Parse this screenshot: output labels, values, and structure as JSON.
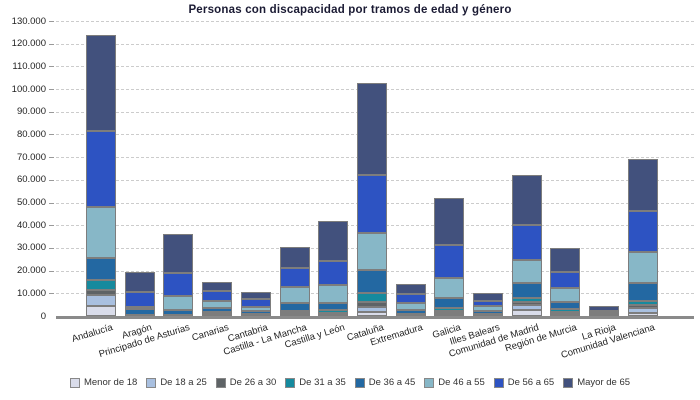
{
  "title": "Personas con discapacidad por tramos de edad y género",
  "colors": {
    "background": "#ffffff",
    "title_text": "#1a1a33",
    "gridline": "#cccccc",
    "axis_line": "#8a8a8a",
    "bar_border": "#7d7d7d",
    "tick_text": "#222222"
  },
  "y_axis": {
    "tick_labels": [
      "0",
      "10.000",
      "20.000",
      "30.000",
      "40.000",
      "50.000",
      "60.000",
      "70.000",
      "80.000",
      "90.000",
      "100.000",
      "110.000",
      "120.000",
      "130.000"
    ]
  },
  "chart_data": {
    "type": "bar",
    "stacked": true,
    "title": "Personas con discapacidad por tramos de edad y género",
    "xlabel": "",
    "ylabel": "",
    "ylim": [
      0,
      130000
    ],
    "ytick_interval": 10000,
    "grid": "horizontal-dashed",
    "legend_position": "bottom",
    "categories": [
      "Andalucía",
      "Aragón",
      "Principado de Asturias",
      "Canarias",
      "Cantabria",
      "Castilla - La Mancha",
      "Castilla y León",
      "Cataluña",
      "Extremadura",
      "Galicia",
      "Illes Balears",
      "Comunidad de Madrid",
      "Región de Murcia",
      "La Rioja",
      "Comunidad Valenciana"
    ],
    "series": [
      {
        "name": "Menor de 18",
        "color": "#d9dcea",
        "values": [
          4400,
          100,
          150,
          900,
          230,
          250,
          380,
          1630,
          180,
          880,
          230,
          2650,
          750,
          90,
          1450
        ]
      },
      {
        "name": "De 18 a 25",
        "color": "#a9c0e0",
        "values": [
          4850,
          150,
          200,
          400,
          280,
          320,
          500,
          2470,
          250,
          750,
          280,
          2200,
          700,
          120,
          2080
        ]
      },
      {
        "name": "De 26 a 30",
        "color": "#5e6366",
        "values": [
          2200,
          80,
          100,
          150,
          120,
          620,
          570,
          2200,
          150,
          570,
          150,
          1190,
          450,
          80,
          1190
        ]
      },
      {
        "name": "De 31 a 35",
        "color": "#168a9e",
        "values": [
          4400,
          170,
          200,
          310,
          250,
          1150,
          1200,
          3840,
          300,
          1190,
          350,
          2030,
          1180,
          150,
          1760
        ]
      },
      {
        "name": "De 36 a 45",
        "color": "#2368a2",
        "values": [
          9700,
          2600,
          2100,
          1900,
          1190,
          3260,
          3220,
          10140,
          1760,
          4680,
          1190,
          6330,
          3220,
          350,
          8060
        ]
      },
      {
        "name": "De 46 a 55",
        "color": "#87b7c7",
        "values": [
          22500,
          1000,
          6200,
          3100,
          1760,
          7050,
          7800,
          16310,
          2950,
          8810,
          2340,
          10280,
          6170,
          400,
          13660
        ]
      },
      {
        "name": "De 56 a 65",
        "color": "#2d53c2",
        "values": [
          33500,
          6500,
          10000,
          4400,
          3530,
          8370,
          10700,
          25560,
          3960,
          14420,
          2070,
          15420,
          6790,
          1150,
          17940
        ]
      },
      {
        "name": "Mayor de 65",
        "color": "#42517d",
        "values": [
          42300,
          9000,
          17300,
          3970,
          3350,
          9260,
          17630,
          40540,
          4400,
          20700,
          3390,
          21900,
          10580,
          2200,
          23190
        ]
      }
    ]
  }
}
